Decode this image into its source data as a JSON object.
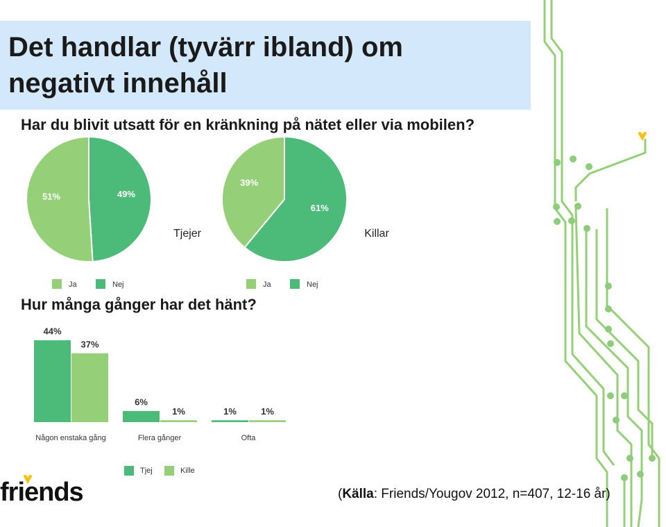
{
  "title": "Det handlar (tyvärr ibland) om negativt innehåll",
  "question_1": "Har du blivit utsatt för en kränkning på nätet eller via mobilen?",
  "question_2": "Hur många gånger har det hänt?",
  "logo": "friends",
  "source": [
    "(",
    "Källa",
    ": Friends/Yougov 2012, n=407, 12-16 år)"
  ],
  "chart_data": [
    {
      "type": "pie",
      "label": "Tjejer",
      "categories": [
        "Ja",
        "Nej"
      ],
      "values": [
        51,
        49
      ],
      "value_labels": [
        "51%",
        "49%"
      ],
      "colors": [
        "#95cf78",
        "#4cba78"
      ]
    },
    {
      "type": "pie",
      "label": "Killar",
      "categories": [
        "Ja",
        "Nej"
      ],
      "values": [
        39,
        61
      ],
      "value_labels": [
        "39%",
        "61%"
      ],
      "colors": [
        "#95cf78",
        "#4cba78"
      ]
    },
    {
      "type": "bar",
      "categories": [
        "Någon enstaka gång",
        "Flera gånger",
        "Ofta"
      ],
      "series": [
        {
          "name": "Tjej",
          "color": "#4cba78",
          "values": [
            44,
            6,
            1
          ],
          "value_labels": [
            "44%",
            "6%",
            "1%"
          ]
        },
        {
          "name": "Kille",
          "color": "#95cf78",
          "values": [
            37,
            1,
            1
          ],
          "value_labels": [
            "37%",
            "1%",
            "1%"
          ]
        }
      ]
    }
  ]
}
